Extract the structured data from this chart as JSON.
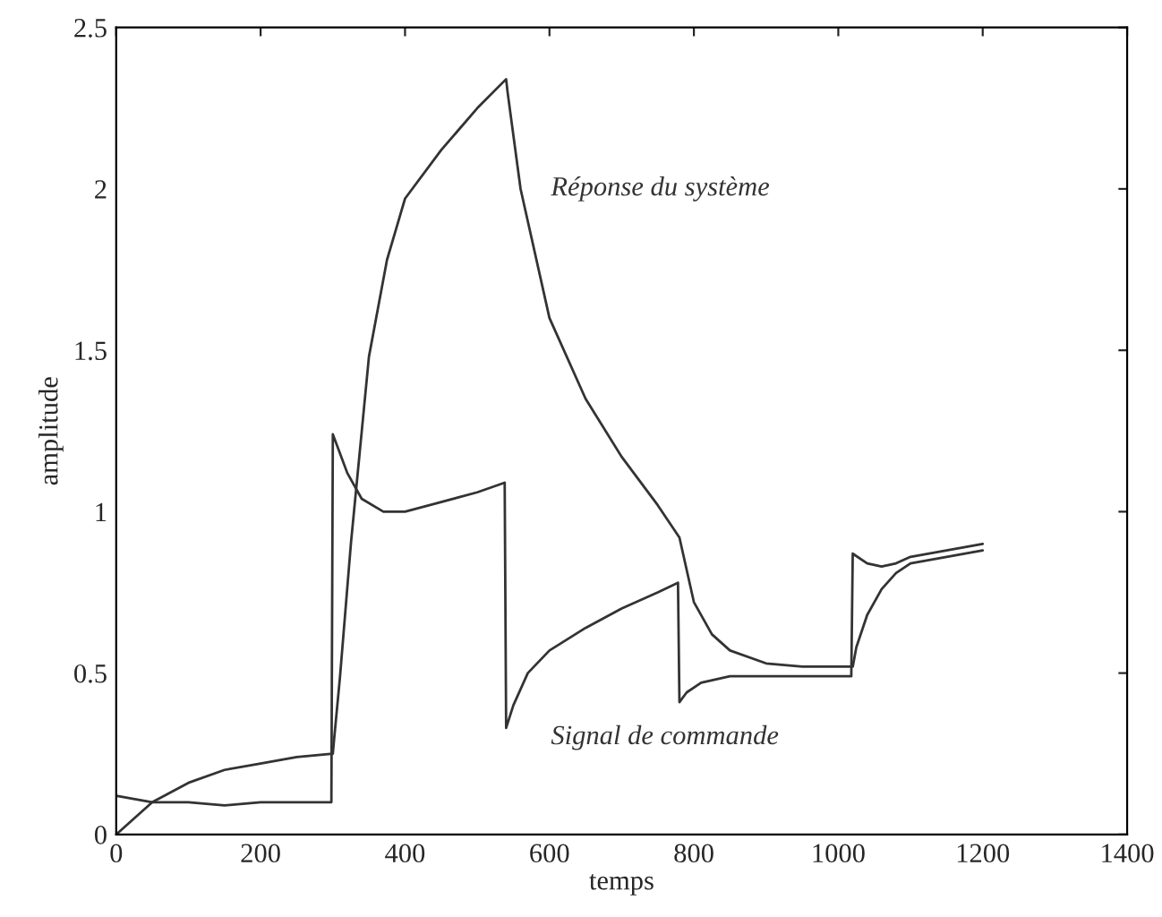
{
  "chart_data": {
    "type": "line",
    "xlabel": "temps",
    "ylabel": "amplitude",
    "xlim": [
      0,
      1400
    ],
    "ylim": [
      0,
      2.5
    ],
    "xticks": [
      0,
      200,
      400,
      600,
      800,
      1000,
      1200,
      1400
    ],
    "yticks": [
      0,
      {
        "value": 0.5,
        "label": "0.5"
      },
      1,
      {
        "value": 1.5,
        "label": "1.5"
      },
      2,
      {
        "value": 2.5,
        "label": "2.5"
      }
    ],
    "grid": false,
    "series": [
      {
        "name": "Réponse du système",
        "color": "#333333",
        "x": [
          0,
          50,
          100,
          150,
          200,
          250,
          300,
          302,
          310,
          325,
          350,
          375,
          400,
          450,
          500,
          540,
          542,
          560,
          600,
          650,
          700,
          750,
          780,
          800,
          825,
          850,
          900,
          950,
          1020,
          1025,
          1040,
          1060,
          1080,
          1100,
          1150,
          1200
        ],
        "values": [
          0,
          0.1,
          0.16,
          0.2,
          0.22,
          0.24,
          0.25,
          0.3,
          0.49,
          0.9,
          1.48,
          1.78,
          1.97,
          2.12,
          2.25,
          2.34,
          2.3,
          2.0,
          1.6,
          1.35,
          1.17,
          1.02,
          0.92,
          0.72,
          0.62,
          0.57,
          0.53,
          0.52,
          0.52,
          0.58,
          0.68,
          0.76,
          0.81,
          0.84,
          0.86,
          0.88
        ]
      },
      {
        "name": "Signal de commande",
        "color": "#333333",
        "x": [
          0,
          50,
          100,
          150,
          200,
          250,
          298,
          300,
          320,
          340,
          370,
          400,
          450,
          500,
          538,
          540,
          550,
          570,
          600,
          650,
          700,
          750,
          778,
          780,
          790,
          810,
          850,
          900,
          1018,
          1020,
          1040,
          1060,
          1080,
          1100,
          1150,
          1200
        ],
        "values": [
          0.12,
          0.1,
          0.1,
          0.09,
          0.1,
          0.1,
          0.1,
          1.24,
          1.12,
          1.04,
          1.0,
          1.0,
          1.03,
          1.06,
          1.09,
          0.33,
          0.4,
          0.5,
          0.57,
          0.64,
          0.7,
          0.75,
          0.78,
          0.41,
          0.44,
          0.47,
          0.49,
          0.49,
          0.49,
          0.87,
          0.84,
          0.83,
          0.84,
          0.86,
          0.88,
          0.9
        ]
      }
    ],
    "legend": false
  }
}
